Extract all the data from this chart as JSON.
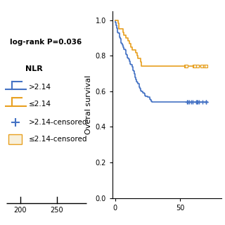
{
  "ylabel": "Overal survival",
  "ylim": [
    0.0,
    1.05
  ],
  "xlim": [
    -2,
    82
  ],
  "yticks": [
    0.0,
    0.2,
    0.4,
    0.6,
    0.8,
    1.0
  ],
  "xticks": [
    0,
    50
  ],
  "logrank_text": "log-rank P=0.036",
  "legend_title": "NLR",
  "blue_color": "#4472C4",
  "orange_color": "#E8A020",
  "background_color": "#FFFFFF",
  "blue_label": ">2.14",
  "orange_label": "≤2.14",
  "blue_censored_label": ">2.14-censored",
  "orange_censored_label": "≤2.14-censored",
  "bottom_ticks": [
    "200",
    "250"
  ]
}
